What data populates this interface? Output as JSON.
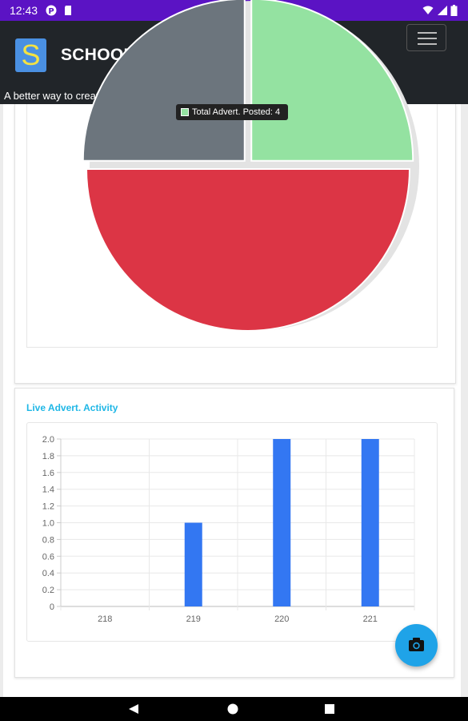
{
  "status_bar": {
    "time": "12:43"
  },
  "app_bar": {
    "logo_letter": "S",
    "title": "SCHOOLMORY",
    "tagline": "A better way to create and enjoy beautiful moments of Schooldays."
  },
  "pie_chart_tooltip": {
    "text": "Total Advert. Posted: 4"
  },
  "chart_section": {
    "title": "Live Advert. Activity"
  },
  "chart_data": [
    {
      "type": "pie",
      "slices": [
        {
          "name": "Total Advert. Posted",
          "value": 4,
          "color": "#94e2a1"
        },
        {
          "name": "",
          "value": 8,
          "color": "#dc3545"
        },
        {
          "name": "",
          "value": 4,
          "color": "#6c757d"
        }
      ]
    },
    {
      "type": "bar",
      "categories": [
        "218",
        "219",
        "220",
        "221"
      ],
      "values": [
        0,
        1,
        2,
        2
      ],
      "ylim": [
        0,
        2.0
      ],
      "yticks": [
        "0",
        "0.2",
        "0.4",
        "0.6",
        "0.8",
        "1.0",
        "1.2",
        "1.4",
        "1.6",
        "1.8",
        "2.0"
      ],
      "grid": true,
      "color": "#3377f2"
    }
  ],
  "colors": {
    "status_bar": "#5b13c4",
    "app_bar": "#212529",
    "accent": "#1fb7e6",
    "fab": "#1fa3e8"
  },
  "icons": {
    "fab": "camera-icon",
    "menu": "hamburger-icon"
  }
}
